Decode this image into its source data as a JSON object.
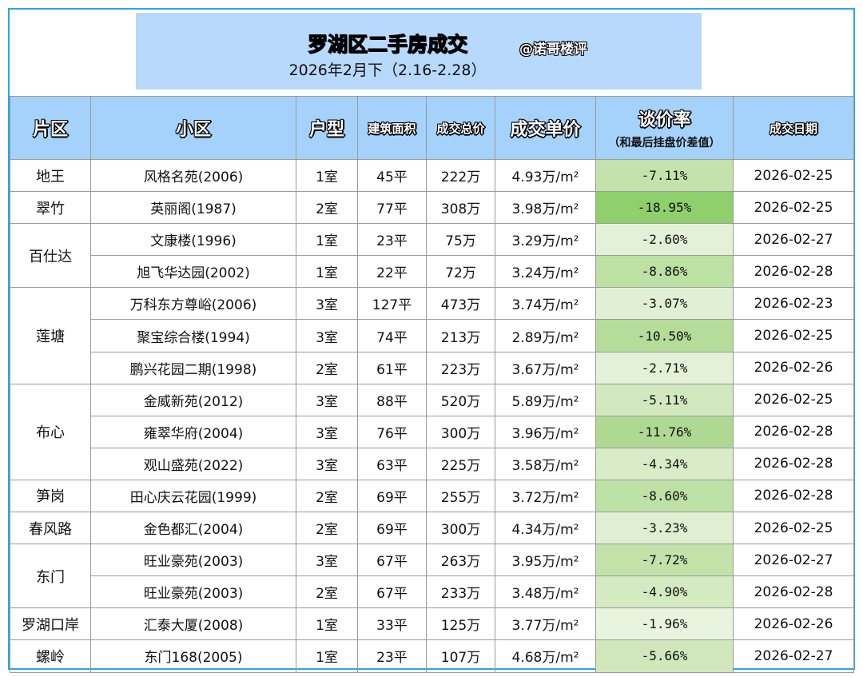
{
  "header": {
    "title": "罗湖区二手房成交",
    "handle": "@诺哥楼评",
    "subtitle": "2026年2月下（2.16-2.28）"
  },
  "columns": {
    "district": "片区",
    "community": "小区",
    "layout": "户型",
    "area": "建筑面积",
    "total_price": "成交总价",
    "unit_price": "成交单价",
    "discount": "谈价率",
    "discount_note": "（和最后挂盘价差值）",
    "date": "成交日期"
  },
  "colors": {
    "frame_border": "#2aa6e8",
    "header_bg": "#b7d9fb",
    "table_header_bg": "#a4d2fa",
    "title_color": "#2a68f0"
  },
  "rows": [
    {
      "district": "地王",
      "community": "风格名苑(2006)",
      "layout": "1室",
      "area": "45平",
      "total": "222万",
      "unit": "4.93万/m²",
      "rate": "-7.11%",
      "date": "2026-02-25",
      "rate_bg": "#c4e2ab"
    },
    {
      "district": "翠竹",
      "community": "英丽阁(1987)",
      "layout": "2室",
      "area": "77平",
      "total": "308万",
      "unit": "3.98万/m²",
      "rate": "-18.95%",
      "date": "2026-02-25",
      "rate_bg": "#8fcf6c"
    },
    {
      "district": "百仕达",
      "community": "文康楼(1996)",
      "layout": "1室",
      "area": "23平",
      "total": "75万",
      "unit": "3.29万/m²",
      "rate": "-2.60%",
      "date": "2026-02-27",
      "rate_bg": "#e4f1d8"
    },
    {
      "district": "",
      "community": "旭飞华达园(2002)",
      "layout": "1室",
      "area": "22平",
      "total": "72万",
      "unit": "3.24万/m²",
      "rate": "-8.86%",
      "date": "2026-02-28",
      "rate_bg": "#bde0a3"
    },
    {
      "district": "莲塘",
      "community": "万科东方尊峪(2006)",
      "layout": "3室",
      "area": "127平",
      "total": "473万",
      "unit": "3.74万/m²",
      "rate": "-3.07%",
      "date": "2026-02-23",
      "rate_bg": "#e1f0d4"
    },
    {
      "district": "",
      "community": "聚宝综合楼(1994)",
      "layout": "3室",
      "area": "74平",
      "total": "213万",
      "unit": "2.89万/m²",
      "rate": "-10.50%",
      "date": "2026-02-25",
      "rate_bg": "#b5dc98"
    },
    {
      "district": "",
      "community": "鹏兴花园二期(1998)",
      "layout": "2室",
      "area": "61平",
      "total": "223万",
      "unit": "3.67万/m²",
      "rate": "-2.71%",
      "date": "2026-02-26",
      "rate_bg": "#e4f1d8"
    },
    {
      "district": "布心",
      "community": "金威新苑(2012)",
      "layout": "3室",
      "area": "88平",
      "total": "520万",
      "unit": "5.89万/m²",
      "rate": "-5.11%",
      "date": "2026-02-25",
      "rate_bg": "#d2e9c0"
    },
    {
      "district": "",
      "community": "雍翠华府(2004)",
      "layout": "3室",
      "area": "76平",
      "total": "300万",
      "unit": "3.96万/m²",
      "rate": "-11.76%",
      "date": "2026-02-28",
      "rate_bg": "#afd992"
    },
    {
      "district": "",
      "community": "观山盛苑(2022)",
      "layout": "3室",
      "area": "63平",
      "total": "225万",
      "unit": "3.58万/m²",
      "rate": "-4.34%",
      "date": "2026-02-28",
      "rate_bg": "#d8ecc8"
    },
    {
      "district": "笋岗",
      "community": "田心庆云花园(1999)",
      "layout": "2室",
      "area": "69平",
      "total": "255万",
      "unit": "3.72万/m²",
      "rate": "-8.60%",
      "date": "2026-02-28",
      "rate_bg": "#bee1a5"
    },
    {
      "district": "春风路",
      "community": "金色都汇(2004)",
      "layout": "2室",
      "area": "69平",
      "total": "300万",
      "unit": "4.34万/m²",
      "rate": "-3.23%",
      "date": "2026-02-25",
      "rate_bg": "#e0efd2"
    },
    {
      "district": "东门",
      "community": "旺业豪苑(2003)",
      "layout": "3室",
      "area": "67平",
      "total": "263万",
      "unit": "3.95万/m²",
      "rate": "-7.72%",
      "date": "2026-02-27",
      "rate_bg": "#c3e2aa"
    },
    {
      "district": "",
      "community": "旺业豪苑(2003)",
      "layout": "2室",
      "area": "67平",
      "total": "233万",
      "unit": "3.48万/m²",
      "rate": "-4.90%",
      "date": "2026-02-28",
      "rate_bg": "#d4eac2"
    },
    {
      "district": "罗湖口岸",
      "community": "汇泰大厦(2008)",
      "layout": "1室",
      "area": "33平",
      "total": "125万",
      "unit": "3.77万/m²",
      "rate": "-1.96%",
      "date": "2026-02-26",
      "rate_bg": "#e9f4df"
    },
    {
      "district": "螺岭",
      "community": "东门168(2005)",
      "layout": "1室",
      "area": "23平",
      "total": "107万",
      "unit": "4.68万/m²",
      "rate": "-5.66%",
      "date": "2026-02-27",
      "rate_bg": "#cfe7bb"
    }
  ],
  "district_spans": {
    "0": 1,
    "1": 1,
    "2": 2,
    "4": 3,
    "7": 3,
    "10": 1,
    "11": 1,
    "12": 2,
    "14": 1,
    "15": 1
  }
}
